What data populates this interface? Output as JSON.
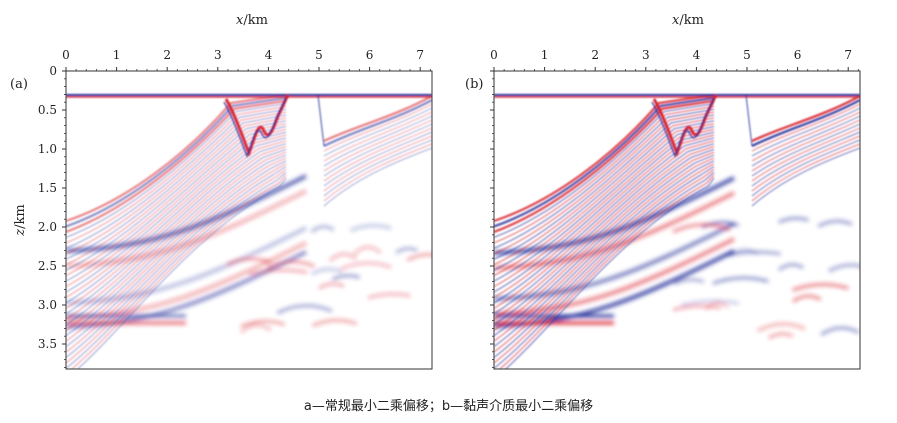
{
  "figure": {
    "panels": [
      {
        "label": "(a)",
        "x_axis_title_var": "x",
        "x_axis_title_unit": "/km",
        "y_axis_title_var": "z",
        "y_axis_title_unit": "/km",
        "x_ticks": [
          "0",
          "1",
          "2",
          "3",
          "4",
          "5",
          "6",
          "7"
        ],
        "y_ticks": [
          "0",
          "0.5",
          "1.0",
          "1.5",
          "2.0",
          "2.5",
          "3.0",
          "3.5"
        ]
      },
      {
        "label": "(b)",
        "x_axis_title_var": "x",
        "x_axis_title_unit": "/km",
        "x_ticks": [
          "0",
          "1",
          "2",
          "3",
          "4",
          "5",
          "6",
          "7"
        ]
      }
    ],
    "caption": "a—常规最小二乘偏移；b—黏声介质最小二乘偏移",
    "colors": {
      "positive": "#d9222a",
      "negative": "#25309a",
      "background": "#ffffff"
    }
  }
}
